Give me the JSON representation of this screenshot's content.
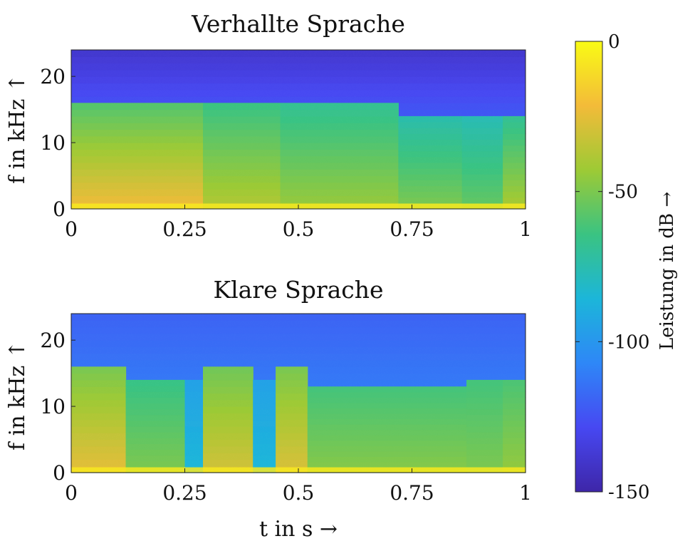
{
  "chart_data": [
    {
      "type": "heatmap",
      "title": "Verhallte Sprache",
      "xlabel": "",
      "ylabel": "f in kHz ↑",
      "xlim": [
        0,
        1
      ],
      "ylim": [
        0,
        24
      ],
      "xticks": [
        0,
        0.25,
        0.5,
        0.75,
        1
      ],
      "xticklabels": [
        "0",
        "0.25",
        "0.5",
        "0.75",
        "1"
      ],
      "yticks": [
        0,
        10,
        20
      ],
      "yticklabels": [
        "0",
        "10",
        "20"
      ],
      "clim": [
        -150,
        0
      ],
      "segments": [
        {
          "t": [
            0.0,
            0.29
          ],
          "cutoff_khz": 16,
          "low_db": -22,
          "high_db": -58
        },
        {
          "t": [
            0.29,
            0.46
          ],
          "cutoff_khz": 16,
          "low_db": -38,
          "high_db": -64
        },
        {
          "t": [
            0.46,
            0.72
          ],
          "cutoff_khz": 16,
          "low_db": -44,
          "high_db": -68
        },
        {
          "t": [
            0.72,
            0.86
          ],
          "cutoff_khz": 14,
          "low_db": -50,
          "high_db": -74
        },
        {
          "t": [
            0.86,
            0.95
          ],
          "cutoff_khz": 14,
          "low_db": -55,
          "high_db": -76
        },
        {
          "t": [
            0.95,
            1.0
          ],
          "cutoff_khz": 14,
          "low_db": -40,
          "high_db": -68
        }
      ]
    },
    {
      "type": "heatmap",
      "title": "Klare Sprache",
      "xlabel": "t in s →",
      "ylabel": "f in kHz ↑",
      "xlim": [
        0,
        1
      ],
      "ylim": [
        0,
        24
      ],
      "xticks": [
        0,
        0.25,
        0.5,
        0.75,
        1
      ],
      "xticklabels": [
        "0",
        "0.25",
        "0.5",
        "0.75",
        "1"
      ],
      "yticks": [
        0,
        10,
        20
      ],
      "yticklabels": [
        "0",
        "10",
        "20"
      ],
      "clim": [
        -150,
        0
      ],
      "segments": [
        {
          "t": [
            0.0,
            0.12
          ],
          "cutoff_khz": 16,
          "low_db": -25,
          "high_db": -50
        },
        {
          "t": [
            0.12,
            0.25
          ],
          "cutoff_khz": 14,
          "low_db": -50,
          "high_db": -65
        },
        {
          "t": [
            0.25,
            0.29
          ],
          "cutoff_khz": 14,
          "low_db": -85,
          "high_db": -95
        },
        {
          "t": [
            0.29,
            0.4
          ],
          "cutoff_khz": 16,
          "low_db": -30,
          "high_db": -52
        },
        {
          "t": [
            0.4,
            0.45
          ],
          "cutoff_khz": 14,
          "low_db": -85,
          "high_db": -95
        },
        {
          "t": [
            0.45,
            0.52
          ],
          "cutoff_khz": 16,
          "low_db": -28,
          "high_db": -50
        },
        {
          "t": [
            0.52,
            0.87
          ],
          "cutoff_khz": 13,
          "low_db": -48,
          "high_db": -62
        },
        {
          "t": [
            0.87,
            0.95
          ],
          "cutoff_khz": 14,
          "low_db": -50,
          "high_db": -62
        },
        {
          "t": [
            0.95,
            1.0
          ],
          "cutoff_khz": 14,
          "low_db": -45,
          "high_db": -60
        }
      ]
    }
  ],
  "colorbar": {
    "label": "Leistung in dB →",
    "ticks": [
      0,
      -50,
      -100,
      -150
    ],
    "ticklabels": [
      "0",
      "-50",
      "-100",
      "-150"
    ],
    "range": [
      -150,
      0
    ],
    "colors": [
      "#3e26a8",
      "#4748f2",
      "#2e87f7",
      "#1cb6d9",
      "#3ac382",
      "#9dca35",
      "#f3bb39",
      "#f9fb15"
    ]
  }
}
